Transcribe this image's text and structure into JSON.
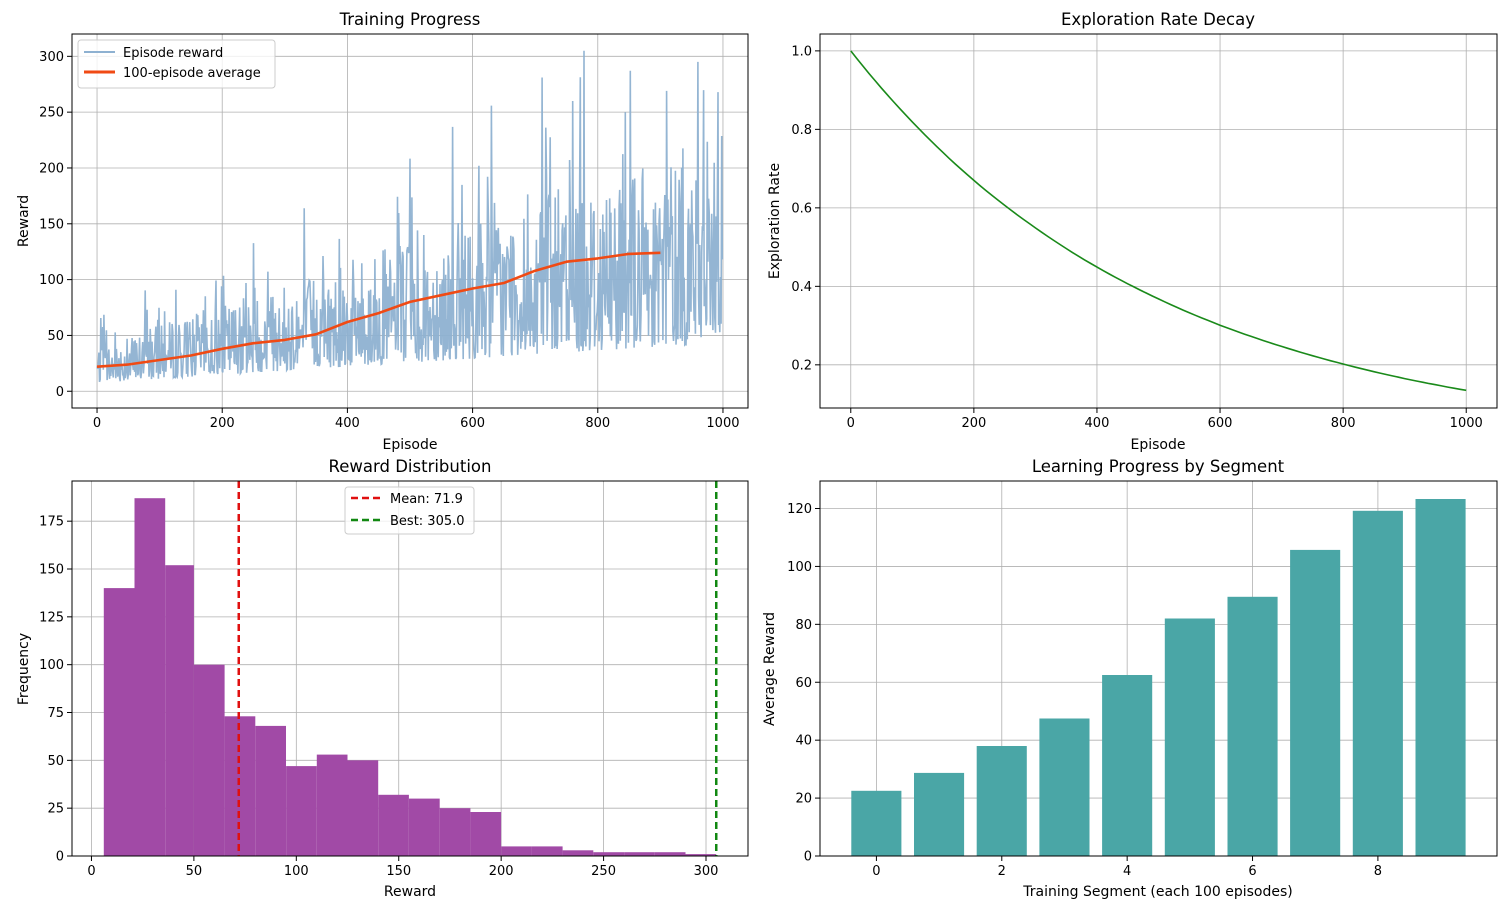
{
  "chart_data": [
    {
      "type": "line",
      "title": "Training Progress",
      "xlabel": "Episode",
      "ylabel": "Reward",
      "xlim": [
        -40,
        1040
      ],
      "ylim": [
        -15,
        320
      ],
      "xticks": [
        0,
        200,
        400,
        600,
        800,
        1000
      ],
      "yticks": [
        0,
        50,
        100,
        150,
        200,
        250,
        300
      ],
      "grid": true,
      "legend_position": "upper-left",
      "series": [
        {
          "name": "Episode reward",
          "color": "#8eb1d1",
          "generated": true,
          "x_range": [
            0,
            999
          ],
          "trend_start": 22,
          "trend_end": 125,
          "min": 8,
          "max": 305,
          "notable_peaks": [
            {
              "x": 778,
              "y": 305
            },
            {
              "x": 711,
              "y": 281
            },
            {
              "x": 852,
              "y": 287
            },
            {
              "x": 910,
              "y": 269
            },
            {
              "x": 992,
              "y": 268
            },
            {
              "x": 760,
              "y": 260
            }
          ]
        },
        {
          "name": "100-episode average",
          "color": "#f04a14",
          "x": [
            0,
            50,
            100,
            150,
            200,
            250,
            300,
            350,
            400,
            450,
            500,
            550,
            600,
            650,
            700,
            750,
            800,
            850,
            900
          ],
          "y": [
            22,
            24,
            28,
            32,
            38,
            43,
            46,
            51,
            62,
            70,
            80,
            86,
            92,
            97,
            108,
            116,
            119,
            123,
            124
          ]
        }
      ]
    },
    {
      "type": "line",
      "title": "Exploration Rate Decay",
      "xlabel": "Episode",
      "ylabel": "Exploration Rate",
      "xlim": [
        -50,
        1050
      ],
      "ylim": [
        0.09,
        1.043
      ],
      "xticks": [
        0,
        200,
        400,
        600,
        800,
        1000
      ],
      "yticks": [
        0.2,
        0.4,
        0.6,
        0.8,
        1.0
      ],
      "ytick_labels": [
        "0.2",
        "0.4",
        "0.6",
        "0.8",
        "1.0"
      ],
      "grid": true,
      "series": [
        {
          "name": "exploration rate",
          "color": "#1a8a1a",
          "x": [
            0,
            100,
            200,
            300,
            400,
            500,
            600,
            700,
            800,
            900,
            1000
          ],
          "y": [
            1.0,
            0.819,
            0.67,
            0.549,
            0.449,
            0.368,
            0.301,
            0.247,
            0.202,
            0.165,
            0.135
          ]
        }
      ]
    },
    {
      "type": "histogram",
      "title": "Reward Distribution",
      "xlabel": "Reward",
      "ylabel": "Frequency",
      "xlim": [
        -9.5,
        320.5
      ],
      "ylim": [
        0,
        196
      ],
      "xticks": [
        0,
        50,
        100,
        150,
        200,
        250,
        300
      ],
      "yticks": [
        0,
        25,
        50,
        75,
        100,
        125,
        150,
        175
      ],
      "grid": true,
      "bar_color": "#a14aa6",
      "bin_edges": [
        6,
        21,
        36,
        50,
        65,
        80,
        95,
        110,
        125,
        140,
        155,
        170,
        185,
        200,
        215,
        230,
        245,
        260,
        275,
        290,
        305
      ],
      "counts": [
        140,
        187,
        152,
        100,
        73,
        68,
        47,
        53,
        50,
        32,
        30,
        25,
        23,
        5,
        5,
        3,
        2,
        2,
        2,
        1
      ],
      "reference_lines": [
        {
          "name": "Mean: 71.9",
          "value": 71.9,
          "color": "#e01010"
        },
        {
          "name": "Best: 305.0",
          "value": 305.0,
          "color": "#118811"
        }
      ],
      "legend_position": "upper-center"
    },
    {
      "type": "bar",
      "title": "Learning Progress by Segment",
      "xlabel": "Training Segment (each 100 episodes)",
      "ylabel": "Average Reward",
      "xlim": [
        -0.9,
        9.9
      ],
      "ylim": [
        0,
        129.5
      ],
      "xticks": [
        0,
        2,
        4,
        6,
        8
      ],
      "yticks": [
        0,
        20,
        40,
        60,
        80,
        100,
        120
      ],
      "grid": true,
      "bar_color": "#4aa6a6",
      "categories": [
        0,
        1,
        2,
        3,
        4,
        5,
        6,
        7,
        8,
        9
      ],
      "values": [
        22.5,
        28.7,
        38,
        47.5,
        62.5,
        82,
        89.5,
        105.7,
        119.2,
        123.3
      ]
    }
  ]
}
